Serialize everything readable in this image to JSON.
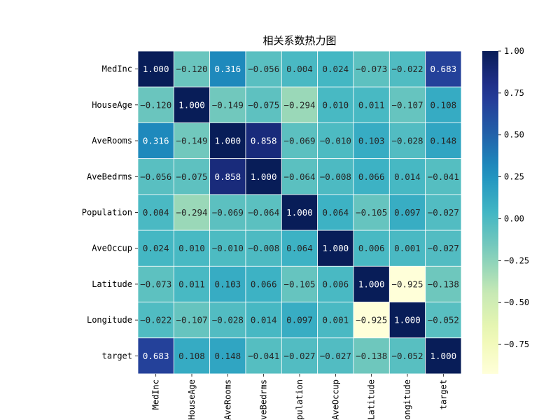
{
  "chart_data": {
    "type": "heatmap",
    "title": "相关系数热力图",
    "labels": [
      "MedInc",
      "HouseAge",
      "AveRooms",
      "AveBedrms",
      "Population",
      "AveOccup",
      "Latitude",
      "Longitude",
      "target"
    ],
    "values": [
      [
        1.0,
        -0.12,
        0.316,
        -0.056,
        0.004,
        0.024,
        -0.073,
        -0.022,
        0.683
      ],
      [
        -0.12,
        1.0,
        -0.149,
        -0.075,
        -0.294,
        0.01,
        0.011,
        -0.107,
        0.108
      ],
      [
        0.316,
        -0.149,
        1.0,
        0.858,
        -0.069,
        -0.01,
        0.103,
        -0.028,
        0.148
      ],
      [
        -0.056,
        -0.075,
        0.858,
        1.0,
        -0.064,
        -0.008,
        0.066,
        0.014,
        -0.041
      ],
      [
        0.004,
        -0.294,
        -0.069,
        -0.064,
        1.0,
        0.064,
        -0.105,
        0.097,
        -0.027
      ],
      [
        0.024,
        0.01,
        -0.01,
        -0.008,
        0.064,
        1.0,
        0.006,
        0.001,
        -0.027
      ],
      [
        -0.073,
        0.011,
        0.103,
        0.066,
        -0.105,
        0.006,
        1.0,
        -0.925,
        -0.138
      ],
      [
        -0.022,
        -0.107,
        -0.028,
        0.014,
        0.097,
        0.001,
        -0.925,
        1.0,
        -0.052
      ],
      [
        0.683,
        0.108,
        0.148,
        -0.041,
        -0.027,
        -0.027,
        -0.138,
        -0.052,
        1.0
      ]
    ],
    "value_format": "3 decimals, minus sign as −",
    "colormap": "YlGnBu",
    "color_range": [
      -0.925,
      1.0
    ],
    "colorbar_ticks": [
      1.0,
      0.75,
      0.5,
      0.25,
      0.0,
      -0.25,
      -0.5,
      -0.75
    ],
    "colorbar_tick_labels": [
      "1.00",
      "0.75",
      "0.50",
      "0.25",
      "0.00",
      "−0.25",
      "−0.50",
      "−0.75"
    ],
    "cell_border_color": "#ffffff",
    "annotations": true
  }
}
